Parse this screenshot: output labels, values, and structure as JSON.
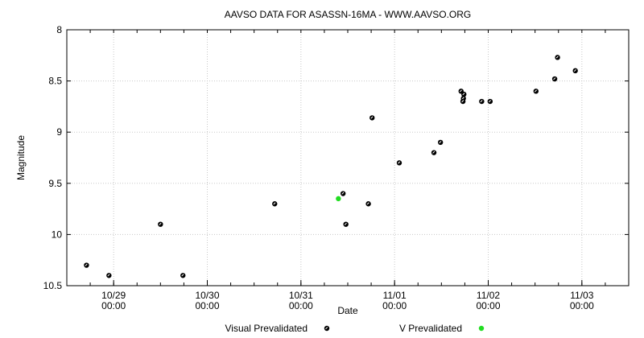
{
  "chart_data": {
    "type": "scatter",
    "title": "AAVSO DATA FOR ASASSN-16MA - WWW.AAVSO.ORG",
    "xlabel": "Date",
    "ylabel": "Magnitude",
    "x_unit": "days since 10/29 00:00",
    "xlim": [
      -0.5,
      5.5
    ],
    "ylim": [
      10.5,
      8
    ],
    "y_inverted": true,
    "grid": true,
    "legend_position": "bottom",
    "yticks": [
      {
        "value": 8,
        "label": "8"
      },
      {
        "value": 8.5,
        "label": "8.5"
      },
      {
        "value": 9,
        "label": "9"
      },
      {
        "value": 9.5,
        "label": "9.5"
      },
      {
        "value": 10,
        "label": "10"
      },
      {
        "value": 10.5,
        "label": "10.5"
      }
    ],
    "xticks": [
      {
        "value": 0,
        "date": "10/29",
        "time": "00:00"
      },
      {
        "value": 1,
        "date": "10/30",
        "time": "00:00"
      },
      {
        "value": 2,
        "date": "10/31",
        "time": "00:00"
      },
      {
        "value": 3,
        "date": "11/01",
        "time": "00:00"
      },
      {
        "value": 4,
        "date": "11/02",
        "time": "00:00"
      },
      {
        "value": 5,
        "date": "11/03",
        "time": "00:00"
      }
    ],
    "series": [
      {
        "name": "Visual Prevalidated",
        "color": "#000000",
        "points": [
          [
            -0.29,
            10.3
          ],
          [
            -0.05,
            10.4
          ],
          [
            0.5,
            9.9
          ],
          [
            0.74,
            10.4
          ],
          [
            1.72,
            9.7
          ],
          [
            2.45,
            9.6
          ],
          [
            2.48,
            9.9
          ],
          [
            2.72,
            9.7
          ],
          [
            2.76,
            8.86
          ],
          [
            3.05,
            9.3
          ],
          [
            3.42,
            9.2
          ],
          [
            3.49,
            9.1
          ],
          [
            3.71,
            8.6
          ],
          [
            3.74,
            8.63
          ],
          [
            3.735,
            8.67
          ],
          [
            3.73,
            8.7
          ],
          [
            3.93,
            8.7
          ],
          [
            4.02,
            8.7
          ],
          [
            4.51,
            8.6
          ],
          [
            4.71,
            8.48
          ],
          [
            4.74,
            8.27
          ],
          [
            4.93,
            8.4
          ]
        ]
      },
      {
        "name": "V Prevalidated",
        "color": "#22dd22",
        "points": [
          [
            2.4,
            9.65
          ]
        ]
      }
    ]
  }
}
